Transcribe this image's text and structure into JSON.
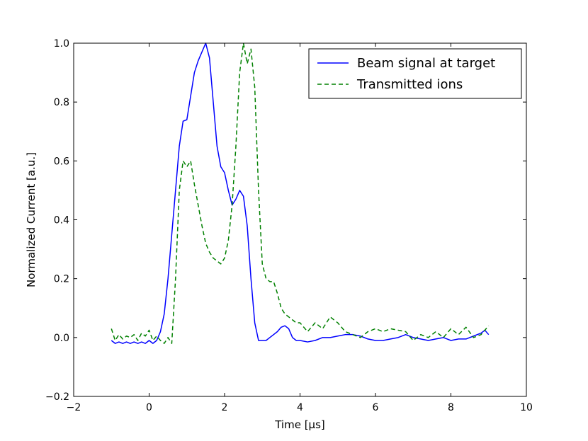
{
  "chart_data": {
    "type": "line",
    "title": "",
    "xlabel": "Time [μs]",
    "ylabel": "Normalized Current [a.u.]",
    "xlim": [
      -2,
      10
    ],
    "ylim": [
      -0.2,
      1.0
    ],
    "xticks": [
      -2,
      0,
      2,
      4,
      6,
      8,
      10
    ],
    "yticks": [
      -0.2,
      0.0,
      0.2,
      0.4,
      0.6,
      0.8,
      1.0
    ],
    "xtick_labels": [
      "−2",
      "0",
      "2",
      "4",
      "6",
      "8",
      "10"
    ],
    "ytick_labels": [
      "−0.2",
      "0.0",
      "0.2",
      "0.4",
      "0.6",
      "0.8",
      "1.0"
    ],
    "grid": false,
    "legend_position": "top-right",
    "series": [
      {
        "name": "Beam signal at target",
        "color": "#0000ff",
        "style": "solid",
        "x": [
          -1.0,
          -0.9,
          -0.8,
          -0.7,
          -0.6,
          -0.5,
          -0.4,
          -0.3,
          -0.2,
          -0.1,
          0.0,
          0.1,
          0.2,
          0.3,
          0.4,
          0.5,
          0.6,
          0.7,
          0.8,
          0.9,
          1.0,
          1.1,
          1.2,
          1.3,
          1.4,
          1.5,
          1.6,
          1.7,
          1.8,
          1.9,
          2.0,
          2.1,
          2.2,
          2.3,
          2.4,
          2.5,
          2.6,
          2.7,
          2.8,
          2.9,
          3.0,
          3.1,
          3.2,
          3.3,
          3.4,
          3.5,
          3.6,
          3.7,
          3.8,
          3.9,
          4.0,
          4.2,
          4.4,
          4.6,
          4.8,
          5.0,
          5.2,
          5.4,
          5.6,
          5.8,
          6.0,
          6.2,
          6.4,
          6.6,
          6.8,
          7.0,
          7.2,
          7.4,
          7.6,
          7.8,
          8.0,
          8.2,
          8.4,
          8.6,
          8.8,
          8.9,
          9.0
        ],
        "y": [
          -0.01,
          -0.02,
          -0.015,
          -0.02,
          -0.015,
          -0.02,
          -0.015,
          -0.02,
          -0.015,
          -0.02,
          -0.01,
          -0.02,
          -0.01,
          0.02,
          0.08,
          0.2,
          0.35,
          0.5,
          0.65,
          0.735,
          0.74,
          0.82,
          0.9,
          0.94,
          0.97,
          1.0,
          0.95,
          0.8,
          0.65,
          0.58,
          0.56,
          0.5,
          0.45,
          0.47,
          0.5,
          0.48,
          0.38,
          0.2,
          0.05,
          -0.01,
          -0.01,
          -0.01,
          0.0,
          0.01,
          0.02,
          0.035,
          0.04,
          0.03,
          0.0,
          -0.01,
          -0.01,
          -0.015,
          -0.01,
          0.0,
          0.0,
          0.005,
          0.01,
          0.01,
          0.005,
          -0.005,
          -0.01,
          -0.01,
          -0.005,
          0.0,
          0.01,
          0.0,
          -0.005,
          -0.01,
          -0.005,
          0.0,
          -0.01,
          -0.005,
          -0.005,
          0.005,
          0.015,
          0.025,
          0.01
        ]
      },
      {
        "name": "Transmitted ions",
        "color": "#008000",
        "style": "dashed",
        "x": [
          -1.0,
          -0.9,
          -0.8,
          -0.7,
          -0.6,
          -0.5,
          -0.4,
          -0.3,
          -0.2,
          -0.1,
          0.0,
          0.1,
          0.2,
          0.3,
          0.4,
          0.5,
          0.6,
          0.7,
          0.8,
          0.9,
          1.0,
          1.1,
          1.2,
          1.3,
          1.4,
          1.5,
          1.6,
          1.7,
          1.8,
          1.9,
          2.0,
          2.1,
          2.2,
          2.3,
          2.4,
          2.5,
          2.6,
          2.7,
          2.8,
          2.9,
          3.0,
          3.1,
          3.2,
          3.3,
          3.4,
          3.5,
          3.6,
          3.7,
          3.8,
          3.9,
          4.0,
          4.2,
          4.4,
          4.6,
          4.8,
          5.0,
          5.2,
          5.4,
          5.6,
          5.8,
          6.0,
          6.2,
          6.4,
          6.6,
          6.8,
          7.0,
          7.2,
          7.4,
          7.6,
          7.8,
          8.0,
          8.2,
          8.4,
          8.6,
          8.8,
          9.0
        ],
        "y": [
          0.03,
          -0.01,
          0.01,
          -0.005,
          0.005,
          0.0,
          0.01,
          -0.01,
          0.015,
          0.005,
          0.025,
          -0.01,
          0.005,
          -0.01,
          -0.02,
          0.0,
          -0.02,
          0.2,
          0.5,
          0.6,
          0.58,
          0.6,
          0.52,
          0.45,
          0.38,
          0.32,
          0.29,
          0.27,
          0.26,
          0.25,
          0.27,
          0.33,
          0.45,
          0.65,
          0.9,
          1.0,
          0.93,
          0.98,
          0.85,
          0.5,
          0.25,
          0.2,
          0.19,
          0.19,
          0.15,
          0.1,
          0.08,
          0.07,
          0.06,
          0.05,
          0.05,
          0.02,
          0.05,
          0.03,
          0.07,
          0.05,
          0.02,
          0.01,
          0.0,
          0.02,
          0.03,
          0.02,
          0.03,
          0.025,
          0.02,
          -0.01,
          0.01,
          0.0,
          0.02,
          0.0,
          0.03,
          0.01,
          0.035,
          0.0,
          0.01,
          0.04
        ]
      }
    ]
  }
}
